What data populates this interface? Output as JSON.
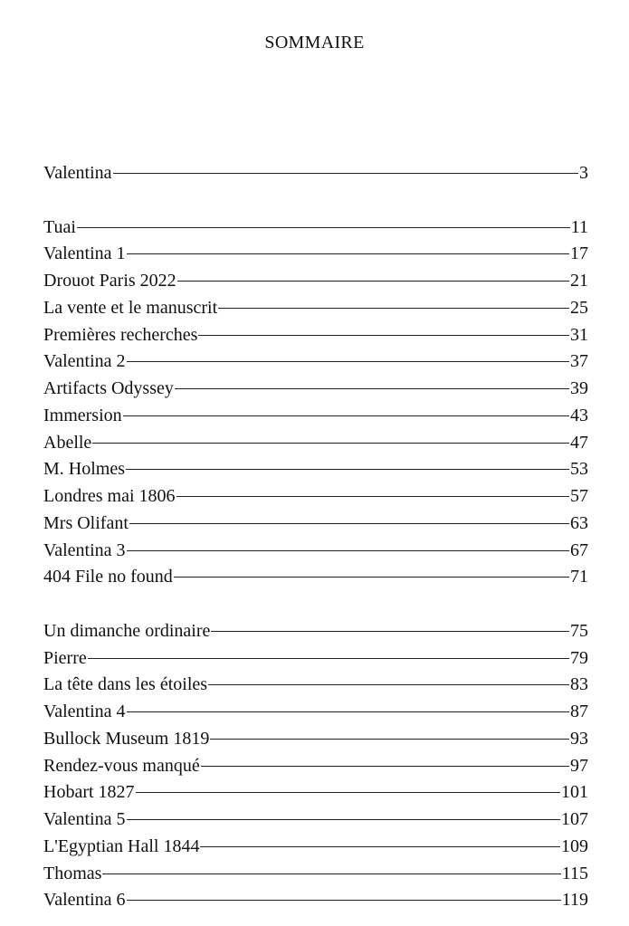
{
  "title": "SOMMAIRE",
  "groups": [
    [
      {
        "label": "Valentina",
        "page": "3"
      }
    ],
    [
      {
        "label": "Tuai",
        "page": "11"
      },
      {
        "label": "Valentina 1",
        "page": "17"
      },
      {
        "label": "Drouot Paris 2022",
        "page": "21"
      },
      {
        "label": "La vente et le manuscrit",
        "page": "25"
      },
      {
        "label": "Premières recherches",
        "page": "31"
      },
      {
        "label": "Valentina 2",
        "page": "37"
      },
      {
        "label": "Artifacts Odyssey",
        "page": "39"
      },
      {
        "label": "Immersion",
        "page": "43"
      },
      {
        "label": "Abelle",
        "page": "47"
      },
      {
        "label": "M. Holmes",
        "page": "53"
      },
      {
        "label": "Londres mai 1806",
        "page": "57"
      },
      {
        "label": "Mrs Olifant",
        "page": "63"
      },
      {
        "label": "Valentina 3",
        "page": "67"
      },
      {
        "label": "404 File no found",
        "page": "71"
      }
    ],
    [
      {
        "label": "Un dimanche ordinaire",
        "page": "75"
      },
      {
        "label": "Pierre",
        "page": "79"
      },
      {
        "label": "La tête dans les étoiles",
        "page": "83"
      },
      {
        "label": "Valentina 4",
        "page": "87"
      },
      {
        "label": "Bullock Museum 1819",
        "page": "93"
      },
      {
        "label": "Rendez-vous manqué",
        "page": "97"
      },
      {
        "label": "Hobart 1827",
        "page": "101"
      },
      {
        "label": "Valentina 5",
        "page": "107"
      },
      {
        "label": "L'Egyptian Hall 1844",
        "page": "109"
      },
      {
        "label": "Thomas",
        "page": "115"
      },
      {
        "label": "Valentina 6",
        "page": "119"
      }
    ]
  ]
}
